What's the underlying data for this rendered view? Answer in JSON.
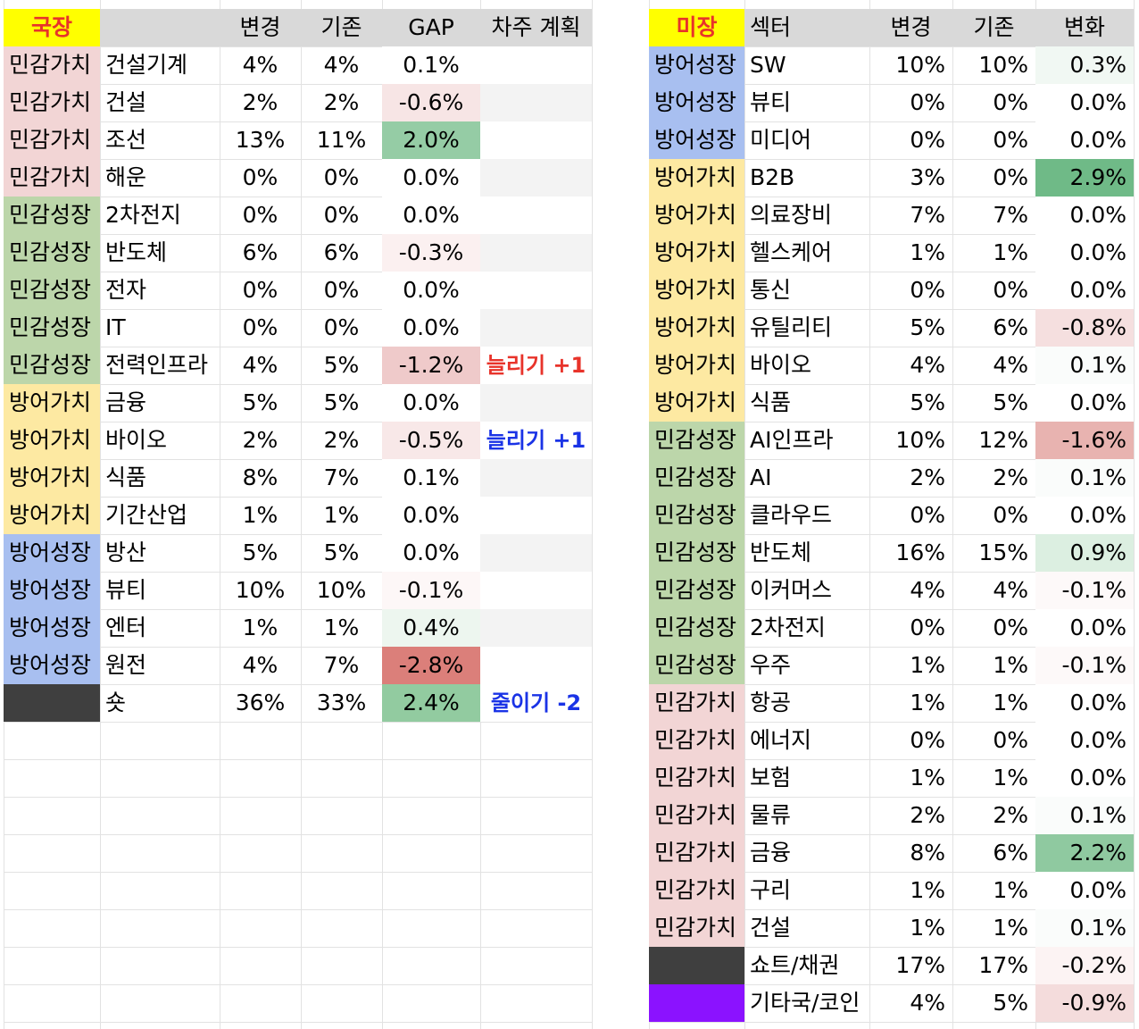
{
  "colors": {
    "민감가치": "#f2d5d5",
    "민감성장": "#bcd6aa",
    "방어가치": "#fde9a2",
    "방어성장": "#a8bff0",
    "dark": "#3f3f3f",
    "purple": "#8b12ff",
    "header": "#d9d9d9",
    "plan_red": "#e8332a",
    "plan_blue": "#1a33e6"
  },
  "kr": {
    "title": "국장",
    "headers": [
      "",
      "변경",
      "기존",
      "GAP",
      "차주 계획"
    ],
    "rows": [
      {
        "cat": "민감가치",
        "sector": "건설기계",
        "new": "4%",
        "old": "4%",
        "gap": "0.1%",
        "gap_bg": "#ffffff",
        "plan": "",
        "plan_bg": "#ffffff"
      },
      {
        "cat": "민감가치",
        "sector": "건설",
        "new": "2%",
        "old": "2%",
        "gap": "-0.6%",
        "gap_bg": "#f7e5e5",
        "plan": "",
        "plan_bg": "#f3f3f3"
      },
      {
        "cat": "민감가치",
        "sector": "조선",
        "new": "13%",
        "old": "11%",
        "gap": "2.0%",
        "gap_bg": "#95cca5",
        "plan": "",
        "plan_bg": "#ffffff"
      },
      {
        "cat": "민감가치",
        "sector": "해운",
        "new": "0%",
        "old": "0%",
        "gap": "0.0%",
        "gap_bg": "#ffffff",
        "plan": "",
        "plan_bg": "#f3f3f3"
      },
      {
        "cat": "민감성장",
        "sector": "2차전지",
        "new": "0%",
        "old": "0%",
        "gap": "0.0%",
        "gap_bg": "#ffffff",
        "plan": "",
        "plan_bg": "#ffffff"
      },
      {
        "cat": "민감성장",
        "sector": "반도체",
        "new": "6%",
        "old": "6%",
        "gap": "-0.3%",
        "gap_bg": "#fbf0f0",
        "plan": "",
        "plan_bg": "#f3f3f3"
      },
      {
        "cat": "민감성장",
        "sector": "전자",
        "new": "0%",
        "old": "0%",
        "gap": "0.0%",
        "gap_bg": "#ffffff",
        "plan": "",
        "plan_bg": "#ffffff"
      },
      {
        "cat": "민감성장",
        "sector": "IT",
        "new": "0%",
        "old": "0%",
        "gap": "0.0%",
        "gap_bg": "#ffffff",
        "plan": "",
        "plan_bg": "#f3f3f3"
      },
      {
        "cat": "민감성장",
        "sector": "전력인프라",
        "new": "4%",
        "old": "5%",
        "gap": "-1.2%",
        "gap_bg": "#efcaca",
        "plan": "늘리기 +1",
        "plan_color": "#e8332a",
        "plan_bg": "#ffffff"
      },
      {
        "cat": "방어가치",
        "sector": "금융",
        "new": "5%",
        "old": "5%",
        "gap": "0.0%",
        "gap_bg": "#ffffff",
        "plan": "",
        "plan_bg": "#f3f3f3"
      },
      {
        "cat": "방어가치",
        "sector": "바이오",
        "new": "2%",
        "old": "2%",
        "gap": "-0.5%",
        "gap_bg": "#f8e8e8",
        "plan": "늘리기 +1",
        "plan_color": "#1a33e6",
        "plan_bg": "#ffffff"
      },
      {
        "cat": "방어가치",
        "sector": "식품",
        "new": "8%",
        "old": "7%",
        "gap": "0.1%",
        "gap_bg": "#ffffff",
        "plan": "",
        "plan_bg": "#f3f3f3"
      },
      {
        "cat": "방어가치",
        "sector": "기간산업",
        "new": "1%",
        "old": "1%",
        "gap": "0.0%",
        "gap_bg": "#ffffff",
        "plan": "",
        "plan_bg": "#ffffff"
      },
      {
        "cat": "방어성장",
        "sector": "방산",
        "new": "5%",
        "old": "5%",
        "gap": "0.0%",
        "gap_bg": "#ffffff",
        "plan": "",
        "plan_bg": "#f3f3f3"
      },
      {
        "cat": "방어성장",
        "sector": "뷰티",
        "new": "10%",
        "old": "10%",
        "gap": "-0.1%",
        "gap_bg": "#fdf7f7",
        "plan": "",
        "plan_bg": "#ffffff"
      },
      {
        "cat": "방어성장",
        "sector": "엔터",
        "new": "1%",
        "old": "1%",
        "gap": "0.4%",
        "gap_bg": "#edf6ef",
        "plan": "",
        "plan_bg": "#f3f3f3"
      },
      {
        "cat": "방어성장",
        "sector": "원전",
        "new": "4%",
        "old": "7%",
        "gap": "-2.8%",
        "gap_bg": "#db7f7a",
        "plan": "",
        "plan_bg": "#ffffff"
      },
      {
        "cat": "dark",
        "sector": "숏",
        "new": "36%",
        "old": "33%",
        "gap": "2.4%",
        "gap_bg": "#92cba0",
        "plan": "줄이기 -2",
        "plan_color": "#1a33e6",
        "plan_bg": "#ffffff"
      }
    ]
  },
  "us": {
    "title": "미장",
    "headers": [
      "섹터",
      "변경",
      "기존",
      "변화"
    ],
    "rows": [
      {
        "cat": "방어성장",
        "sector": "SW",
        "new": "10%",
        "old": "10%",
        "chg": "0.3%",
        "chg_bg": "#f1f8f3"
      },
      {
        "cat": "방어성장",
        "sector": "뷰티",
        "new": "0%",
        "old": "0%",
        "chg": "0.0%",
        "chg_bg": "#ffffff"
      },
      {
        "cat": "방어성장",
        "sector": "미디어",
        "new": "0%",
        "old": "0%",
        "chg": "0.0%",
        "chg_bg": "#ffffff"
      },
      {
        "cat": "방어가치",
        "sector": "B2B",
        "new": "3%",
        "old": "0%",
        "chg": "2.9%",
        "chg_bg": "#6fba87"
      },
      {
        "cat": "방어가치",
        "sector": "의료장비",
        "new": "7%",
        "old": "7%",
        "chg": "0.0%",
        "chg_bg": "#ffffff"
      },
      {
        "cat": "방어가치",
        "sector": "헬스케어",
        "new": "1%",
        "old": "1%",
        "chg": "0.0%",
        "chg_bg": "#ffffff"
      },
      {
        "cat": "방어가치",
        "sector": "통신",
        "new": "0%",
        "old": "0%",
        "chg": "0.0%",
        "chg_bg": "#ffffff"
      },
      {
        "cat": "방어가치",
        "sector": "유틸리티",
        "new": "5%",
        "old": "6%",
        "chg": "-0.8%",
        "chg_bg": "#f5dfdf"
      },
      {
        "cat": "방어가치",
        "sector": "바이오",
        "new": "4%",
        "old": "4%",
        "chg": "0.1%",
        "chg_bg": "#fafcfb"
      },
      {
        "cat": "방어가치",
        "sector": "식품",
        "new": "5%",
        "old": "5%",
        "chg": "0.0%",
        "chg_bg": "#ffffff"
      },
      {
        "cat": "민감성장",
        "sector": "AI인프라",
        "new": "10%",
        "old": "12%",
        "chg": "-1.6%",
        "chg_bg": "#e8b3b0"
      },
      {
        "cat": "민감성장",
        "sector": "AI",
        "new": "2%",
        "old": "2%",
        "chg": "0.1%",
        "chg_bg": "#fafcfb"
      },
      {
        "cat": "민감성장",
        "sector": "클라우드",
        "new": "0%",
        "old": "0%",
        "chg": "0.0%",
        "chg_bg": "#ffffff"
      },
      {
        "cat": "민감성장",
        "sector": "반도체",
        "new": "16%",
        "old": "15%",
        "chg": "0.9%",
        "chg_bg": "#dcefe1"
      },
      {
        "cat": "민감성장",
        "sector": "이커머스",
        "new": "4%",
        "old": "4%",
        "chg": "-0.1%",
        "chg_bg": "#fdf9f9"
      },
      {
        "cat": "민감성장",
        "sector": "2차전지",
        "new": "0%",
        "old": "0%",
        "chg": "0.0%",
        "chg_bg": "#ffffff"
      },
      {
        "cat": "민감성장",
        "sector": "우주",
        "new": "1%",
        "old": "1%",
        "chg": "-0.1%",
        "chg_bg": "#fdf9f9"
      },
      {
        "cat": "민감가치",
        "sector": "항공",
        "new": "1%",
        "old": "1%",
        "chg": "0.0%",
        "chg_bg": "#ffffff"
      },
      {
        "cat": "민감가치",
        "sector": "에너지",
        "new": "0%",
        "old": "0%",
        "chg": "0.0%",
        "chg_bg": "#ffffff"
      },
      {
        "cat": "민감가치",
        "sector": "보험",
        "new": "1%",
        "old": "1%",
        "chg": "0.0%",
        "chg_bg": "#ffffff"
      },
      {
        "cat": "민감가치",
        "sector": "물류",
        "new": "2%",
        "old": "2%",
        "chg": "0.1%",
        "chg_bg": "#fafcfb"
      },
      {
        "cat": "민감가치",
        "sector": "금융",
        "new": "8%",
        "old": "6%",
        "chg": "2.2%",
        "chg_bg": "#8fc9a0"
      },
      {
        "cat": "민감가치",
        "sector": "구리",
        "new": "1%",
        "old": "1%",
        "chg": "0.0%",
        "chg_bg": "#ffffff"
      },
      {
        "cat": "민감가치",
        "sector": "건설",
        "new": "1%",
        "old": "1%",
        "chg": "0.1%",
        "chg_bg": "#fafcfb"
      },
      {
        "cat": "dark",
        "cat_label": "",
        "sector": "쇼트/채권",
        "new": "17%",
        "old": "17%",
        "chg": "-0.2%",
        "chg_bg": "#fcf3f3"
      },
      {
        "cat": "purple",
        "cat_label": "",
        "sector": "기타국/코인",
        "new": "4%",
        "old": "5%",
        "chg": "-0.9%",
        "chg_bg": "#f4dcdc"
      }
    ]
  }
}
